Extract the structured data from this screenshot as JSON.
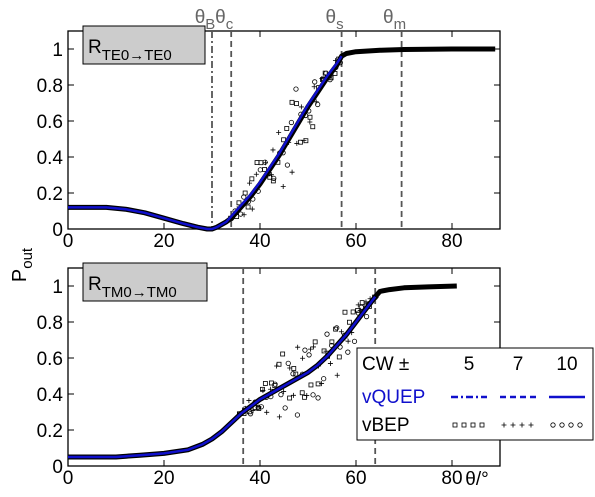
{
  "chart_data": {
    "type": "line",
    "ylabel": "P",
    "ylabel_sub": "out",
    "xlabel_symbol": "θ/°",
    "legend": {
      "header": "CW ±",
      "cw_values": [
        "5",
        "7",
        "10"
      ],
      "rows": [
        {
          "label": "vQUEP",
          "color": "#1010cc",
          "styles": [
            "dashdot",
            "dashed",
            "solid"
          ]
        },
        {
          "label": "vBEP",
          "color": "#000000",
          "markers": [
            "square",
            "plus",
            "circle"
          ]
        }
      ]
    },
    "panels": [
      {
        "panel_label": "R",
        "panel_sub": "TE0→TE0",
        "xlim": [
          0,
          90
        ],
        "ylim": [
          0,
          1.1
        ],
        "xticks": [
          "0",
          "20",
          "40",
          "60",
          "80"
        ],
        "yticks": [
          "0",
          "0.2",
          "0.4",
          "0.6",
          "0.8",
          "1"
        ],
        "angle_markers": [
          {
            "label": "θ",
            "sub": "B",
            "x": 30,
            "style": "dashdot"
          },
          {
            "label": "θ",
            "sub": "c",
            "x": 34,
            "style": "dashed"
          },
          {
            "label": "θ",
            "sub": "s",
            "x": 57,
            "style": "dashed"
          },
          {
            "label": "θ",
            "sub": "m",
            "x": 69.5,
            "style": "dashed"
          }
        ],
        "black_curve": {
          "x": [
            0,
            4,
            8,
            12,
            16,
            20,
            24,
            27,
            29,
            30,
            31,
            33,
            34,
            36,
            38,
            40,
            42,
            44,
            46,
            48,
            50,
            52,
            54,
            56,
            57,
            58,
            60,
            65,
            70,
            75,
            80,
            85,
            89
          ],
          "y": [
            0.12,
            0.12,
            0.12,
            0.11,
            0.09,
            0.06,
            0.03,
            0.01,
            0.0,
            0.0,
            0.01,
            0.04,
            0.06,
            0.12,
            0.18,
            0.25,
            0.33,
            0.41,
            0.5,
            0.59,
            0.68,
            0.76,
            0.84,
            0.91,
            0.96,
            0.975,
            0.985,
            0.993,
            0.997,
            0.999,
            1.0,
            1.0,
            1.0
          ]
        },
        "blue_curve": {
          "x": [
            0,
            4,
            8,
            12,
            16,
            20,
            24,
            27,
            29,
            30,
            31,
            33,
            34,
            36,
            38,
            40,
            42,
            44,
            46,
            48,
            50,
            52,
            54,
            56,
            57
          ],
          "y": [
            0.12,
            0.12,
            0.12,
            0.11,
            0.09,
            0.06,
            0.03,
            0.01,
            0.0,
            0.0,
            0.01,
            0.04,
            0.07,
            0.13,
            0.19,
            0.26,
            0.34,
            0.42,
            0.51,
            0.6,
            0.69,
            0.77,
            0.85,
            0.92,
            0.96
          ]
        },
        "scatter_range": [
          34,
          57
        ]
      },
      {
        "panel_label": "R",
        "panel_sub": "TM0→TM0",
        "xlim": [
          0,
          90
        ],
        "ylim": [
          0,
          1.1
        ],
        "xticks": [
          "0",
          "20",
          "40",
          "60",
          "80"
        ],
        "yticks": [
          "0",
          "0.2",
          "0.4",
          "0.6",
          "0.8",
          "1"
        ],
        "x_unit_label": "θ/°",
        "angle_markers": [
          {
            "x": 36.5,
            "style": "dashed"
          },
          {
            "x": 64,
            "style": "dashed"
          }
        ],
        "black_curve": {
          "x": [
            0,
            5,
            10,
            15,
            20,
            25,
            28,
            30,
            32,
            34,
            36,
            38,
            40,
            42,
            44,
            46,
            48,
            50,
            52,
            54,
            56,
            58,
            60,
            62,
            64,
            65,
            67,
            70,
            75,
            81
          ],
          "y": [
            0.05,
            0.05,
            0.05,
            0.06,
            0.07,
            0.09,
            0.12,
            0.15,
            0.19,
            0.24,
            0.29,
            0.33,
            0.37,
            0.4,
            0.43,
            0.46,
            0.49,
            0.52,
            0.56,
            0.61,
            0.67,
            0.73,
            0.8,
            0.87,
            0.94,
            0.97,
            0.98,
            0.99,
            0.995,
            1.0
          ]
        },
        "blue_curve": {
          "x": [
            0,
            5,
            10,
            15,
            20,
            25,
            28,
            30,
            32,
            34,
            36,
            38,
            40,
            42,
            44,
            46,
            48,
            50,
            52,
            54,
            56,
            58,
            60,
            62,
            64
          ],
          "y": [
            0.05,
            0.05,
            0.05,
            0.06,
            0.07,
            0.09,
            0.12,
            0.15,
            0.19,
            0.24,
            0.29,
            0.33,
            0.37,
            0.4,
            0.43,
            0.46,
            0.49,
            0.52,
            0.56,
            0.61,
            0.67,
            0.73,
            0.8,
            0.87,
            0.94
          ]
        },
        "scatter_range": [
          36,
          64
        ]
      }
    ]
  }
}
